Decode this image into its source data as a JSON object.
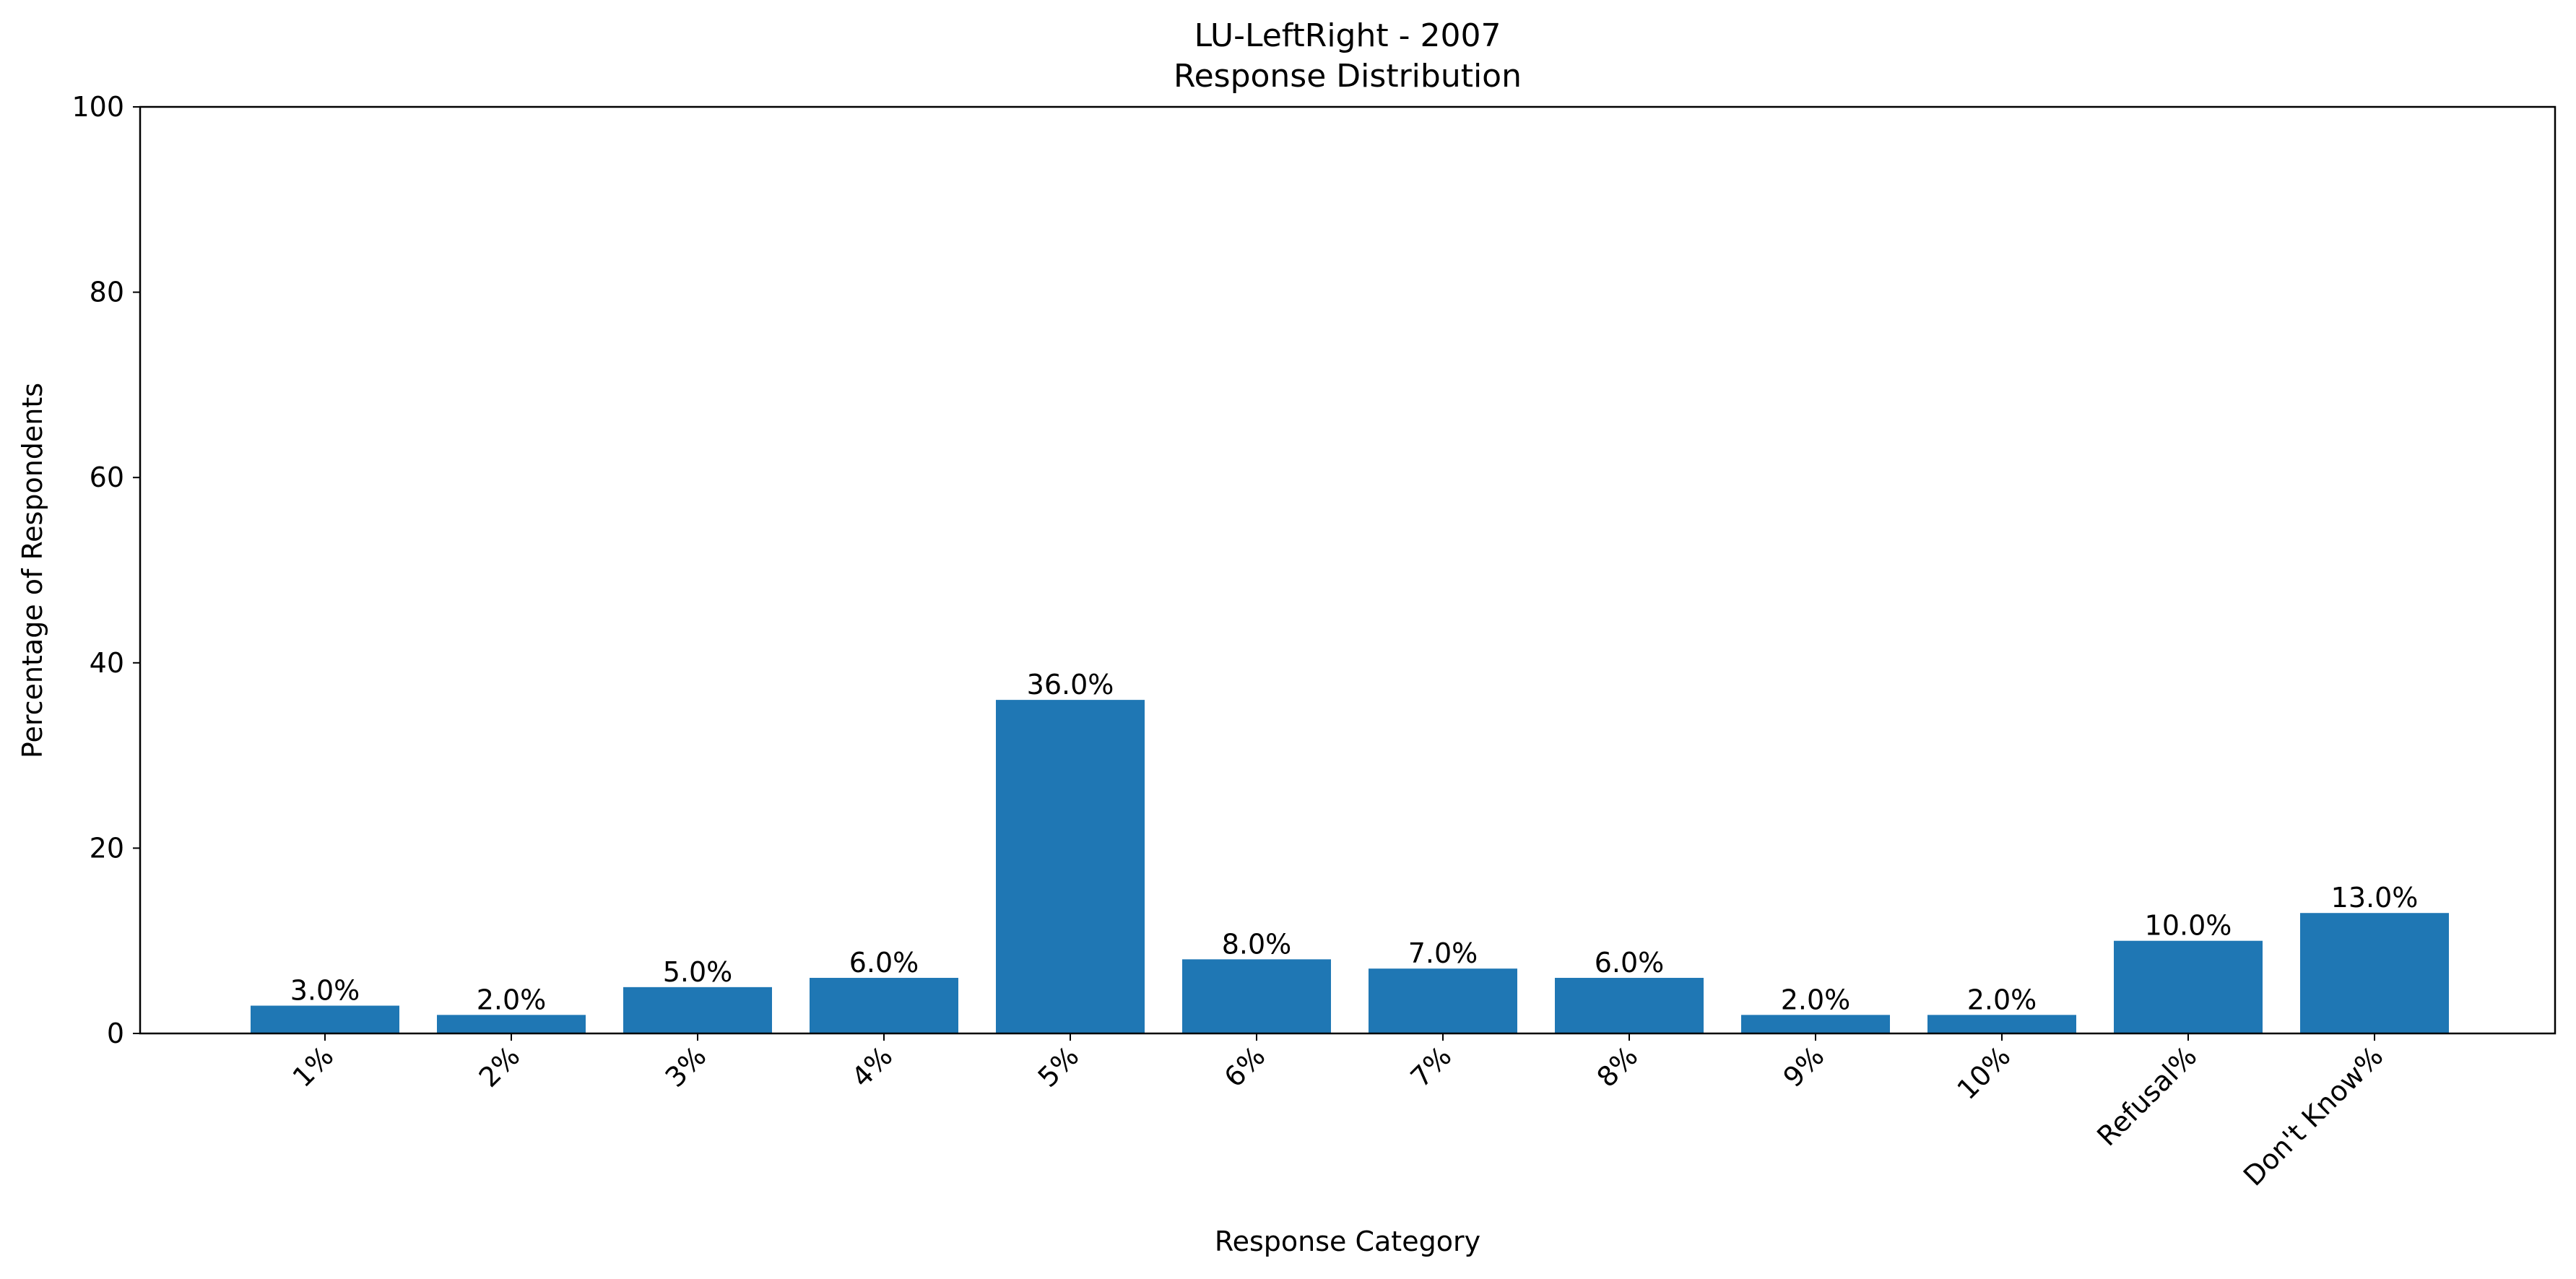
{
  "chart_data": {
    "type": "bar",
    "title": "LU-LeftRight - 2007",
    "subtitle": "Response Distribution",
    "xlabel": "Response Category",
    "ylabel": "Percentage of Respondents",
    "ylim": [
      0,
      100
    ],
    "yticks": [
      0,
      20,
      40,
      60,
      80,
      100
    ],
    "categories": [
      "1%",
      "2%",
      "3%",
      "4%",
      "5%",
      "6%",
      "7%",
      "8%",
      "9%",
      "10%",
      "Refusal%",
      "Don't Know%"
    ],
    "values": [
      3.0,
      2.0,
      5.0,
      6.0,
      36.0,
      8.0,
      7.0,
      6.0,
      2.0,
      2.0,
      10.0,
      13.0
    ],
    "value_labels": [
      "3.0%",
      "2.0%",
      "5.0%",
      "6.0%",
      "36.0%",
      "8.0%",
      "7.0%",
      "6.0%",
      "2.0%",
      "2.0%",
      "10.0%",
      "13.0%"
    ],
    "bar_color": "#1f77b4",
    "grid": false,
    "legend": "none"
  }
}
